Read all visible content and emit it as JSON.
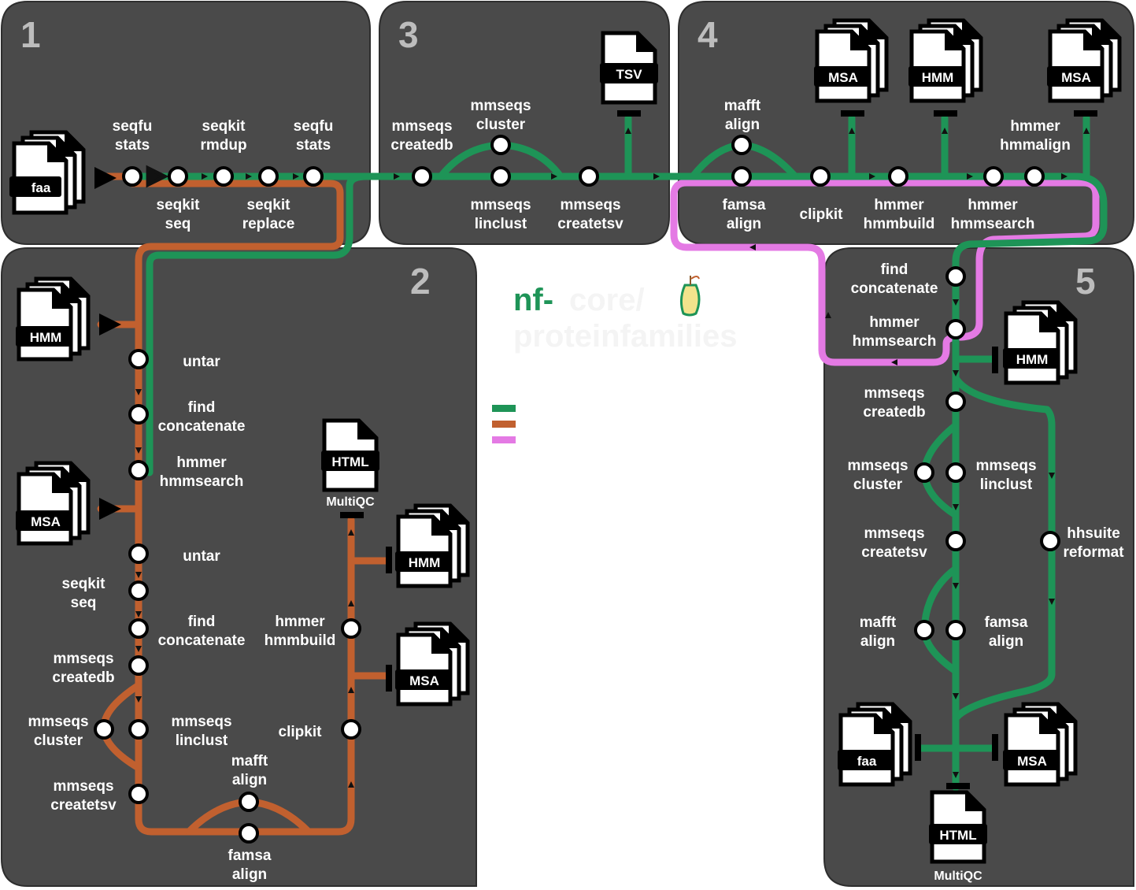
{
  "colors": {
    "panel": "#4a4a4a",
    "panel_border": "#2e2e2e",
    "line_green": "#1e9457",
    "line_orange": "#c1602f",
    "line_pink": "#e47ae4",
    "node_fill": "#ffffff",
    "label_text": "#ffffff",
    "section_number": "#bdbdbd",
    "logo_green": "#1e9457"
  },
  "sections": [
    {
      "number": "1"
    },
    {
      "number": "2"
    },
    {
      "number": "3"
    },
    {
      "number": "4"
    },
    {
      "number": "5"
    }
  ],
  "logo": {
    "prefix": "nf-",
    "core": "core/",
    "pipeline": "proteinfamilies",
    "icon": "apple-core-icon"
  },
  "legend": {
    "swatches": [
      {
        "color": "#1e9457",
        "name": ""
      },
      {
        "color": "#c1602f",
        "name": ""
      },
      {
        "color": "#e47ae4",
        "name": ""
      }
    ]
  },
  "documents": [
    {
      "label": "faa",
      "icon": "stacked-files-icon"
    },
    {
      "label": "HMM",
      "icon": "stacked-files-icon"
    },
    {
      "label": "MSA",
      "icon": "stacked-files-icon"
    },
    {
      "label": "TSV",
      "icon": "file-icon"
    },
    {
      "label": "MSA",
      "icon": "stacked-files-icon"
    },
    {
      "label": "HMM",
      "icon": "stacked-files-icon"
    },
    {
      "label": "MSA",
      "icon": "stacked-files-icon"
    },
    {
      "label": "HTML",
      "icon": "file-icon",
      "caption": "MultiQC"
    },
    {
      "label": "HMM",
      "icon": "stacked-files-icon"
    },
    {
      "label": "MSA",
      "icon": "stacked-files-icon"
    },
    {
      "label": "HMM",
      "icon": "stacked-files-icon"
    },
    {
      "label": "faa",
      "icon": "stacked-files-icon"
    },
    {
      "label": "MSA",
      "icon": "stacked-files-icon"
    },
    {
      "label": "HTML",
      "icon": "file-icon",
      "caption": "MultiQC"
    }
  ],
  "steps": [
    {
      "line1": "seqfu",
      "line2": "stats"
    },
    {
      "line1": "seqkit",
      "line2": "seq"
    },
    {
      "line1": "seqkit",
      "line2": "rmdup"
    },
    {
      "line1": "seqkit",
      "line2": "replace"
    },
    {
      "line1": "seqfu",
      "line2": "stats"
    },
    {
      "line1": "mmseqs",
      "line2": "createdb"
    },
    {
      "line1": "mmseqs",
      "line2": "cluster"
    },
    {
      "line1": "mmseqs",
      "line2": "linclust"
    },
    {
      "line1": "mmseqs",
      "line2": "createtsv"
    },
    {
      "line1": "mafft",
      "line2": "align"
    },
    {
      "line1": "famsa",
      "line2": "align"
    },
    {
      "line1": "clipkit",
      "line2": ""
    },
    {
      "line1": "hmmer",
      "line2": "hmmbuild"
    },
    {
      "line1": "hmmer",
      "line2": "hmmsearch"
    },
    {
      "line1": "hmmer",
      "line2": "hmmalign"
    },
    {
      "line1": "untar",
      "line2": ""
    },
    {
      "line1": "find",
      "line2": "concatenate"
    },
    {
      "line1": "hmmer",
      "line2": "hmmsearch"
    },
    {
      "line1": "untar",
      "line2": ""
    },
    {
      "line1": "seqkit",
      "line2": "seq"
    },
    {
      "line1": "find",
      "line2": "concatenate"
    },
    {
      "line1": "mmseqs",
      "line2": "createdb"
    },
    {
      "line1": "mmseqs",
      "line2": "cluster"
    },
    {
      "line1": "mmseqs",
      "line2": "linclust"
    },
    {
      "line1": "mmseqs",
      "line2": "createtsv"
    },
    {
      "line1": "mafft",
      "line2": "align"
    },
    {
      "line1": "famsa",
      "line2": "align"
    },
    {
      "line1": "hmmer",
      "line2": "hmmbuild"
    },
    {
      "line1": "clipkit",
      "line2": ""
    },
    {
      "line1": "find",
      "line2": "concatenate"
    },
    {
      "line1": "hmmer",
      "line2": "hmmsearch"
    },
    {
      "line1": "mmseqs",
      "line2": "createdb"
    },
    {
      "line1": "mmseqs",
      "line2": "cluster"
    },
    {
      "line1": "mmseqs",
      "line2": "linclust"
    },
    {
      "line1": "mmseqs",
      "line2": "createtsv"
    },
    {
      "line1": "hhsuite",
      "line2": "reformat"
    },
    {
      "line1": "mafft",
      "line2": "align"
    },
    {
      "line1": "famsa",
      "line2": "align"
    }
  ]
}
